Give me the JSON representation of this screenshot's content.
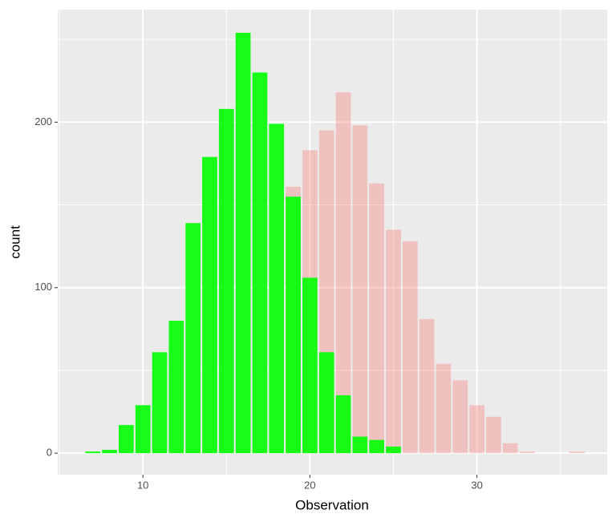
{
  "chart_data": {
    "type": "bar",
    "x_label": "Observation",
    "y_label": "count",
    "xlim": [
      4.9,
      37.8
    ],
    "ylim": [
      -13,
      268
    ],
    "xticks": [
      10,
      20,
      30
    ],
    "yticks": [
      0,
      100,
      200
    ],
    "x_minor_ticks": [
      5,
      15,
      25,
      35
    ],
    "y_minor_ticks": [
      50,
      150,
      250
    ],
    "grid": true,
    "bar_width": 0.9,
    "series": [
      {
        "color": "#F8766D",
        "alpha": 0.35,
        "x": [
          19,
          20,
          21,
          22,
          23,
          24,
          25,
          26,
          27,
          28,
          29,
          30,
          31,
          32,
          33,
          34,
          35,
          36
        ],
        "values": [
          161,
          183,
          195,
          218,
          198,
          163,
          135,
          128,
          81,
          54,
          44,
          29,
          22,
          6,
          1,
          0,
          0,
          1
        ]
      },
      {
        "color": "#00FF00",
        "alpha": 0.9,
        "x": [
          7,
          8,
          9,
          10,
          11,
          12,
          13,
          14,
          15,
          16,
          17,
          18,
          19,
          20,
          21,
          22,
          23,
          24,
          25
        ],
        "values": [
          1,
          2,
          17,
          29,
          61,
          80,
          139,
          179,
          208,
          254,
          230,
          199,
          155,
          106,
          61,
          35,
          10,
          8,
          4
        ]
      }
    ]
  }
}
